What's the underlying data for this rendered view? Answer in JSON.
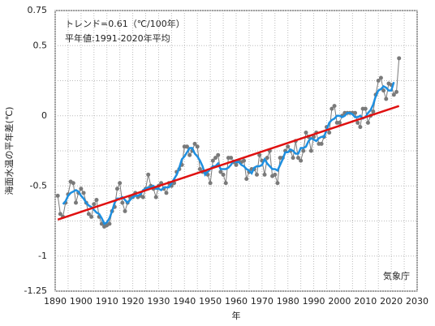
{
  "chart_data": {
    "type": "line",
    "ylabel": "海面水温の平年差(℃)",
    "xlabel": "年",
    "annotations": [
      "トレンド=0.61（℃/100年）",
      "平年値:1991-2020年平均",
      "気象庁"
    ],
    "xlim": [
      1890,
      2030
    ],
    "xticks": [
      1890,
      1900,
      1910,
      1920,
      1930,
      1940,
      1950,
      1960,
      1970,
      1980,
      1990,
      2000,
      2010,
      2020,
      2030
    ],
    "xgrid": [
      1895,
      1905,
      1915,
      1925,
      1935,
      1945,
      1955,
      1965,
      1975,
      1985,
      1995,
      2005,
      2015,
      2025
    ],
    "ylim": [
      -1.25,
      0.75
    ],
    "yticks": [
      0.75,
      0.5,
      0,
      -0.5,
      -1,
      -1.25
    ],
    "ygrid": [
      0.25,
      -0.25,
      -0.75
    ],
    "grid": true,
    "x": [
      1891,
      1892,
      1893,
      1894,
      1895,
      1896,
      1897,
      1898,
      1899,
      1900,
      1901,
      1902,
      1903,
      1904,
      1905,
      1906,
      1907,
      1908,
      1909,
      1910,
      1911,
      1912,
      1913,
      1914,
      1915,
      1916,
      1917,
      1918,
      1919,
      1920,
      1921,
      1922,
      1923,
      1924,
      1925,
      1926,
      1927,
      1928,
      1929,
      1930,
      1931,
      1932,
      1933,
      1934,
      1935,
      1936,
      1937,
      1938,
      1939,
      1940,
      1941,
      1942,
      1943,
      1944,
      1945,
      1946,
      1947,
      1948,
      1949,
      1950,
      1951,
      1952,
      1953,
      1954,
      1955,
      1956,
      1957,
      1958,
      1959,
      1960,
      1961,
      1962,
      1963,
      1964,
      1965,
      1966,
      1967,
      1968,
      1969,
      1970,
      1971,
      1972,
      1973,
      1974,
      1975,
      1976,
      1977,
      1978,
      1979,
      1980,
      1981,
      1982,
      1983,
      1984,
      1985,
      1986,
      1987,
      1988,
      1989,
      1990,
      1991,
      1992,
      1993,
      1994,
      1995,
      1996,
      1997,
      1998,
      1999,
      2000,
      2001,
      2002,
      2003,
      2004,
      2005,
      2006,
      2007,
      2008,
      2009,
      2010,
      2011,
      2012,
      2013,
      2014,
      2015,
      2016,
      2017,
      2018,
      2019,
      2020,
      2021,
      2022,
      2023
    ],
    "series": [
      {
        "color": "#7a7a7a",
        "markers": true,
        "width": 1,
        "values": [
          -0.57,
          -0.7,
          -0.72,
          -0.62,
          -0.56,
          -0.47,
          -0.48,
          -0.62,
          -0.55,
          -0.52,
          -0.55,
          -0.62,
          -0.7,
          -0.72,
          -0.63,
          -0.6,
          -0.72,
          -0.77,
          -0.79,
          -0.78,
          -0.77,
          -0.68,
          -0.65,
          -0.52,
          -0.48,
          -0.62,
          -0.68,
          -0.62,
          -0.58,
          -0.58,
          -0.55,
          -0.58,
          -0.57,
          -0.58,
          -0.52,
          -0.42,
          -0.5,
          -0.52,
          -0.58,
          -0.5,
          -0.48,
          -0.52,
          -0.55,
          -0.48,
          -0.5,
          -0.48,
          -0.4,
          -0.38,
          -0.35,
          -0.22,
          -0.22,
          -0.28,
          -0.25,
          -0.2,
          -0.22,
          -0.38,
          -0.4,
          -0.4,
          -0.42,
          -0.48,
          -0.32,
          -0.3,
          -0.28,
          -0.4,
          -0.42,
          -0.48,
          -0.3,
          -0.3,
          -0.33,
          -0.35,
          -0.32,
          -0.33,
          -0.32,
          -0.45,
          -0.4,
          -0.38,
          -0.38,
          -0.42,
          -0.28,
          -0.32,
          -0.42,
          -0.3,
          -0.25,
          -0.43,
          -0.42,
          -0.48,
          -0.3,
          -0.3,
          -0.25,
          -0.22,
          -0.25,
          -0.3,
          -0.18,
          -0.3,
          -0.32,
          -0.25,
          -0.12,
          -0.15,
          -0.25,
          -0.15,
          -0.12,
          -0.2,
          -0.2,
          -0.15,
          -0.08,
          -0.12,
          0.05,
          0.07,
          -0.05,
          -0.05,
          0.0,
          0.02,
          0.02,
          0.02,
          0.02,
          0.02,
          -0.05,
          -0.08,
          0.05,
          0.05,
          -0.05,
          0.0,
          0.03,
          0.15,
          0.25,
          0.27,
          0.18,
          0.12,
          0.23,
          0.22,
          0.15,
          0.17,
          0.41
        ]
      },
      {
        "color": "#1e8fe0",
        "markers": false,
        "width": 2.5,
        "values": [
          null,
          null,
          -0.63,
          -0.61,
          -0.57,
          -0.55,
          -0.54,
          -0.53,
          -0.54,
          -0.57,
          -0.59,
          -0.62,
          -0.64,
          -0.65,
          -0.67,
          -0.69,
          -0.7,
          -0.73,
          -0.77,
          -0.76,
          -0.73,
          -0.68,
          -0.62,
          -0.59,
          -0.59,
          -0.58,
          -0.6,
          -0.62,
          -0.6,
          -0.58,
          -0.57,
          -0.57,
          -0.56,
          -0.53,
          -0.52,
          -0.51,
          -0.51,
          -0.5,
          -0.52,
          -0.52,
          -0.53,
          -0.51,
          -0.51,
          -0.51,
          -0.48,
          -0.45,
          -0.42,
          -0.37,
          -0.31,
          -0.29,
          -0.26,
          -0.23,
          -0.23,
          -0.27,
          -0.29,
          -0.32,
          -0.36,
          -0.42,
          -0.4,
          -0.38,
          -0.36,
          -0.36,
          -0.34,
          -0.38,
          -0.38,
          -0.38,
          -0.37,
          -0.35,
          -0.32,
          -0.33,
          -0.33,
          -0.35,
          -0.36,
          -0.38,
          -0.39,
          -0.41,
          -0.37,
          -0.36,
          -0.36,
          -0.35,
          -0.31,
          -0.34,
          -0.36,
          -0.38,
          -0.38,
          -0.39,
          -0.35,
          -0.31,
          -0.26,
          -0.26,
          -0.24,
          -0.25,
          -0.27,
          -0.27,
          -0.23,
          -0.23,
          -0.22,
          -0.18,
          -0.16,
          -0.17,
          -0.18,
          -0.16,
          -0.15,
          -0.15,
          -0.1,
          -0.05,
          -0.03,
          -0.02,
          0.0,
          0.0,
          -0.01,
          0.0,
          0.02,
          0.02,
          0.01,
          -0.01,
          -0.01,
          0.0,
          -0.02,
          -0.01,
          0.02,
          0.04,
          0.08,
          0.14,
          0.18,
          0.19,
          0.21,
          0.2,
          0.18,
          0.18,
          0.24,
          null,
          null
        ]
      },
      {
        "color": "#e01010",
        "markers": false,
        "width": 2.5,
        "x": [
          1891,
          2023
        ],
        "values": [
          -0.74,
          0.07
        ]
      }
    ]
  }
}
